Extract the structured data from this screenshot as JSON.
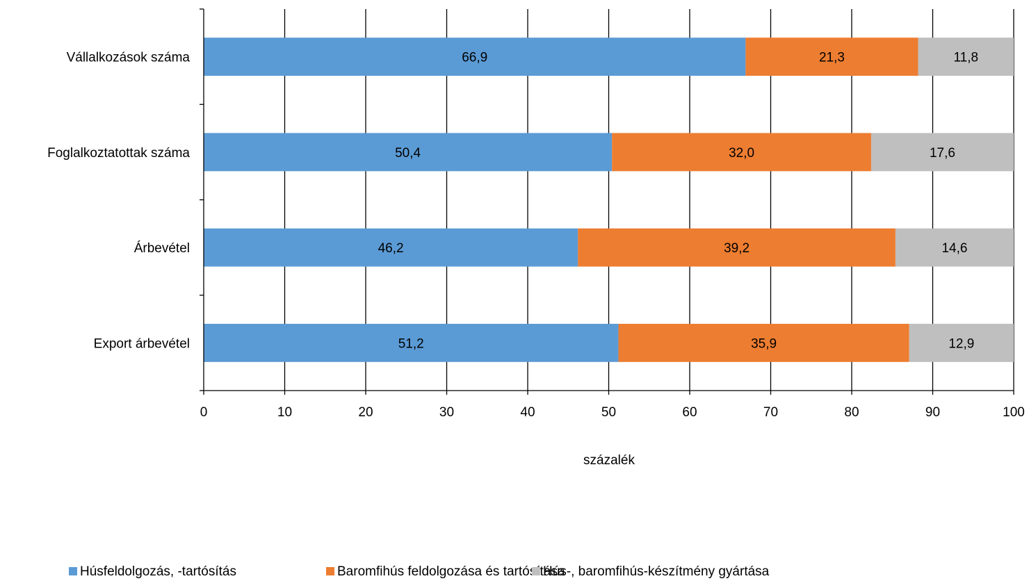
{
  "chart_data": {
    "type": "bar",
    "orientation": "horizontal",
    "stacked": true,
    "categories": [
      "Vállalkozások száma",
      "Foglalkoztatottak száma",
      "Árbevétel",
      "Export árbevétel"
    ],
    "series": [
      {
        "name": "Húsfeldolgozás, -tartósítás",
        "color": "#5b9bd5",
        "values": [
          66.9,
          50.4,
          46.2,
          51.2
        ],
        "labels": [
          "66,9",
          "50,4",
          "46,2",
          "51,2"
        ]
      },
      {
        "name": "Baromfihús feldolgozása és tartósítása",
        "color": "#ed7d31",
        "values": [
          21.3,
          32.0,
          39.2,
          35.9
        ],
        "labels": [
          "21,3",
          "32,0",
          "39,2",
          "35,9"
        ]
      },
      {
        "name": "Hús-, baromfihús-készítmény gyártása",
        "color": "#bfbfbf",
        "values": [
          11.8,
          17.6,
          14.6,
          12.9
        ],
        "labels": [
          "11,8",
          "17,6",
          "14,6",
          "12,9"
        ]
      }
    ],
    "xlabel": "százalék",
    "xlim": [
      0,
      100
    ],
    "xticks": [
      "0",
      "10",
      "20",
      "30",
      "40",
      "50",
      "60",
      "70",
      "80",
      "90",
      "100"
    ],
    "grid": "vertical",
    "legend": "bottom"
  }
}
